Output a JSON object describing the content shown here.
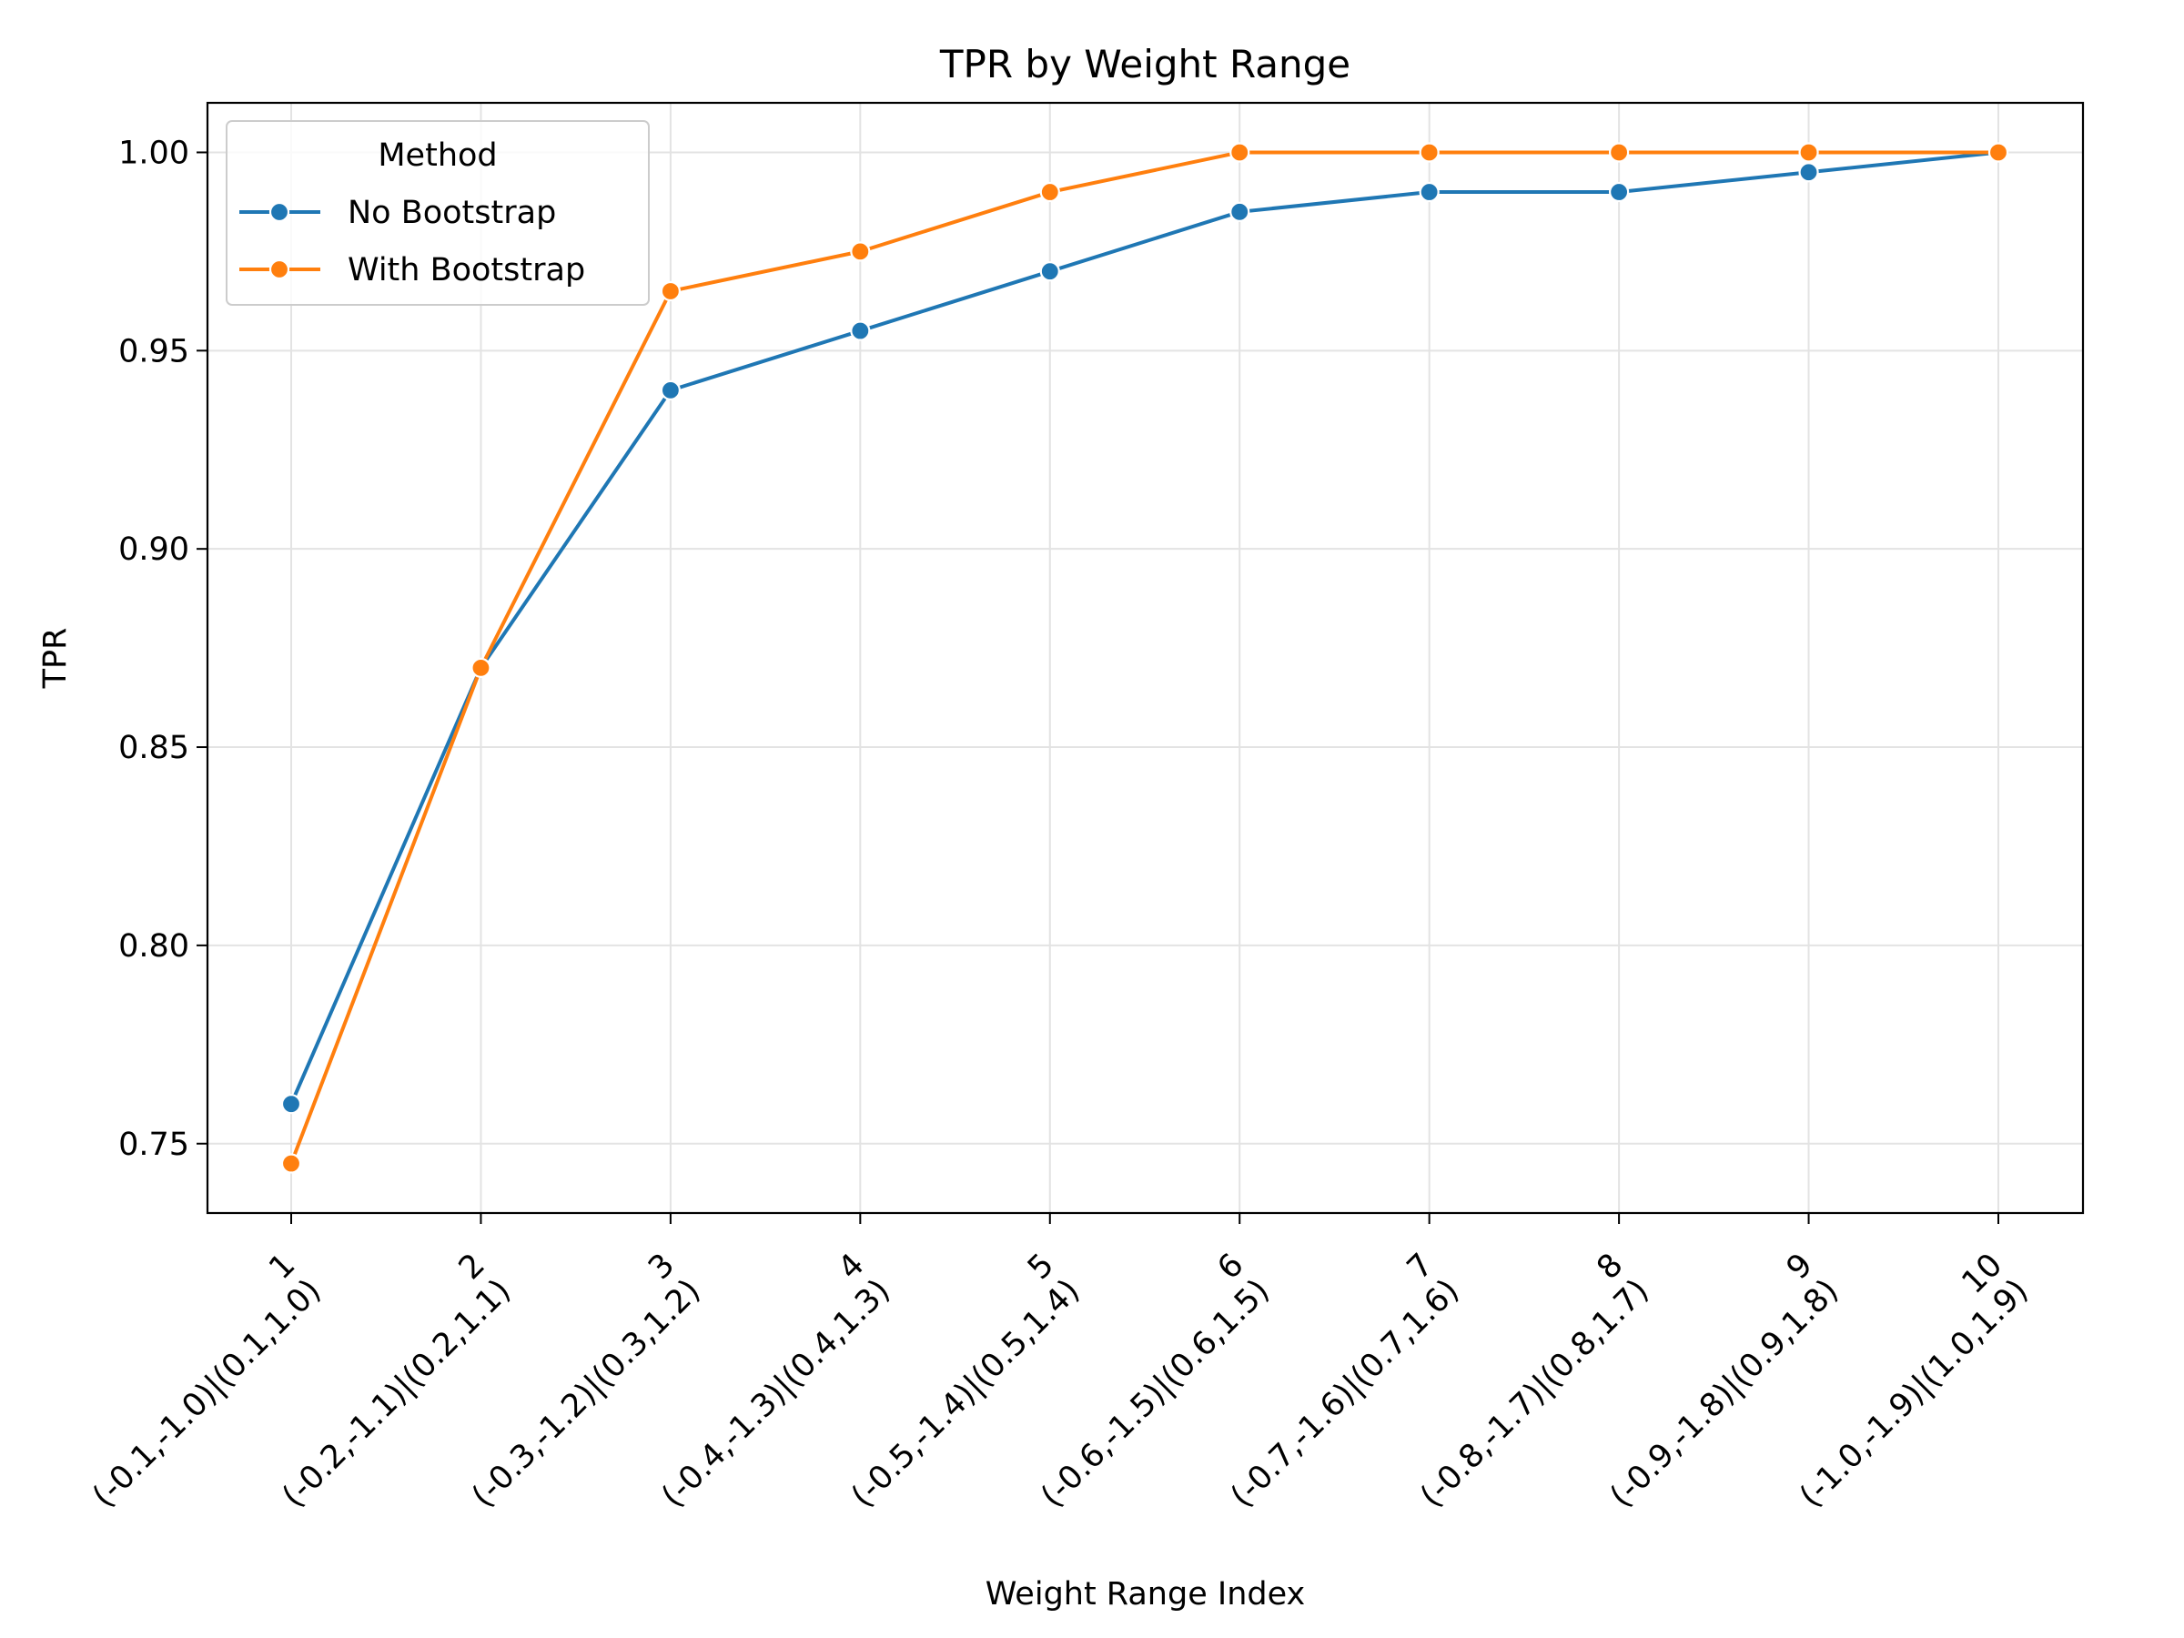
{
  "chart_data": {
    "type": "line",
    "title": "TPR by Weight Range",
    "xlabel": "Weight Range Index",
    "ylabel": "TPR",
    "ylim": [
      0.7325,
      1.0125
    ],
    "yticks": [
      "0.75",
      "0.80",
      "0.85",
      "0.90",
      "0.95",
      "1.00"
    ],
    "grid": true,
    "legend": {
      "title": "Method",
      "position": "top-left"
    },
    "categories": [
      {
        "index": "1",
        "range": "(-0.1,-1.0)|(0.1,1.0)"
      },
      {
        "index": "2",
        "range": "(-0.2,-1.1)|(0.2,1.1)"
      },
      {
        "index": "3",
        "range": "(-0.3,-1.2)|(0.3,1.2)"
      },
      {
        "index": "4",
        "range": "(-0.4,-1.3)|(0.4,1.3)"
      },
      {
        "index": "5",
        "range": "(-0.5,-1.4)|(0.5,1.4)"
      },
      {
        "index": "6",
        "range": "(-0.6,-1.5)|(0.6,1.5)"
      },
      {
        "index": "7",
        "range": "(-0.7,-1.6)|(0.7,1.6)"
      },
      {
        "index": "8",
        "range": "(-0.8,-1.7)|(0.8,1.7)"
      },
      {
        "index": "9",
        "range": "(-0.9,-1.8)|(0.9,1.8)"
      },
      {
        "index": "10",
        "range": "(-1.0,-1.9)|(1.0,1.9)"
      }
    ],
    "series": [
      {
        "name": "No Bootstrap",
        "color": "#1f77b4",
        "values": [
          0.76,
          0.87,
          0.94,
          0.955,
          0.97,
          0.985,
          0.99,
          0.99,
          0.995,
          1.0
        ]
      },
      {
        "name": "With Bootstrap",
        "color": "#ff7f0e",
        "values": [
          0.745,
          0.87,
          0.965,
          0.975,
          0.99,
          1.0,
          1.0,
          1.0,
          1.0,
          1.0
        ]
      }
    ]
  }
}
